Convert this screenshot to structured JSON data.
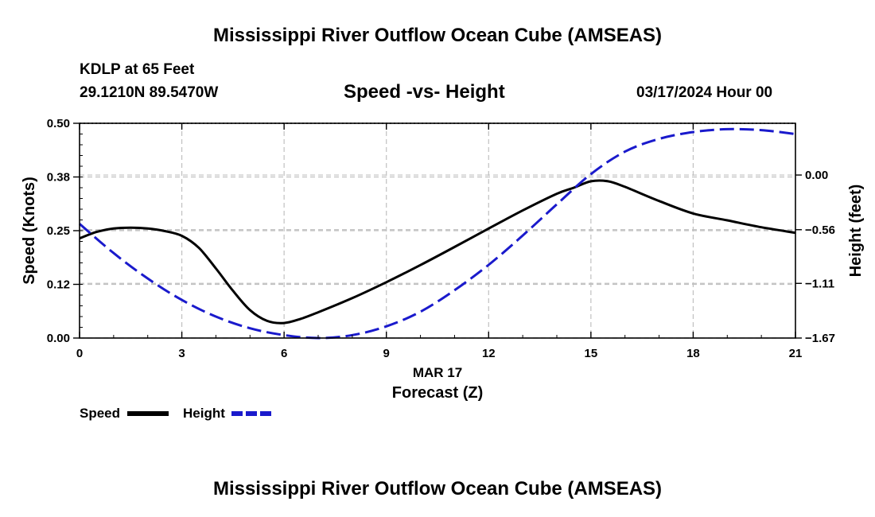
{
  "header": {
    "title": "Mississippi River Outflow Ocean Cube (AMSEAS)",
    "station": "KDLP at 65 Feet",
    "coords": "29.1210N  89.5470W",
    "datetime": "03/17/2024 Hour 00",
    "footer_title": "Mississippi River Outflow Ocean Cube (AMSEAS)"
  },
  "legend": {
    "speed_label": "Speed",
    "height_label": "Height"
  },
  "colors": {
    "speed": "#000000",
    "height": "#1a1acc",
    "grid": "#c0c0c0"
  },
  "chart_data": {
    "type": "line",
    "title": "Speed -vs- Height",
    "xlabel": "Forecast (Z)",
    "xsublabel": "MAR 17",
    "ylabel_left": "Speed (Knots)",
    "ylabel_right": "Height (feet)",
    "xlim": [
      0,
      21
    ],
    "ylim_left": [
      0,
      0.5
    ],
    "ylim_right": [
      -1.67,
      0.53
    ],
    "x_ticks": [
      0,
      3,
      6,
      9,
      12,
      15,
      18,
      21
    ],
    "x_tick_labels": [
      "0",
      "3",
      "6",
      "9",
      "12",
      "15",
      "18",
      "21"
    ],
    "y_left_ticks": [
      0.0,
      0.125,
      0.25,
      0.375,
      0.5
    ],
    "y_left_tick_labels": [
      "0.00",
      "0.12",
      "0.25",
      "0.38",
      "0.50"
    ],
    "y_right_ticks": [
      0.0,
      -0.56,
      -1.11,
      -1.67
    ],
    "y_right_tick_labels": [
      "0.00",
      "−0.56",
      "−1.11",
      "−1.67"
    ],
    "grid": true,
    "series": [
      {
        "name": "Speed",
        "axis": "left",
        "style": "solid",
        "x": [
          0,
          0.5,
          1,
          1.5,
          2,
          2.5,
          3,
          3.5,
          4,
          4.5,
          5,
          5.5,
          6,
          6.5,
          7,
          8,
          9,
          10,
          11,
          12,
          13,
          14,
          14.5,
          15,
          15.5,
          16,
          17,
          18,
          19,
          20,
          21
        ],
        "values": [
          0.232,
          0.247,
          0.255,
          0.257,
          0.255,
          0.249,
          0.238,
          0.21,
          0.162,
          0.11,
          0.065,
          0.04,
          0.035,
          0.045,
          0.06,
          0.093,
          0.13,
          0.17,
          0.212,
          0.255,
          0.297,
          0.336,
          0.35,
          0.365,
          0.365,
          0.352,
          0.319,
          0.29,
          0.274,
          0.258,
          0.245
        ]
      },
      {
        "name": "Height",
        "axis": "right",
        "style": "dashed",
        "x": [
          0,
          1,
          2,
          3,
          4,
          5,
          6,
          7,
          8,
          9,
          10,
          11,
          12,
          13,
          14,
          15,
          16,
          17,
          18,
          19,
          20,
          21
        ],
        "values": [
          -0.5,
          -0.8,
          -1.06,
          -1.28,
          -1.45,
          -1.57,
          -1.64,
          -1.67,
          -1.64,
          -1.55,
          -1.4,
          -1.18,
          -0.92,
          -0.62,
          -0.3,
          0.01,
          0.24,
          0.37,
          0.44,
          0.47,
          0.46,
          0.42
        ]
      }
    ]
  }
}
